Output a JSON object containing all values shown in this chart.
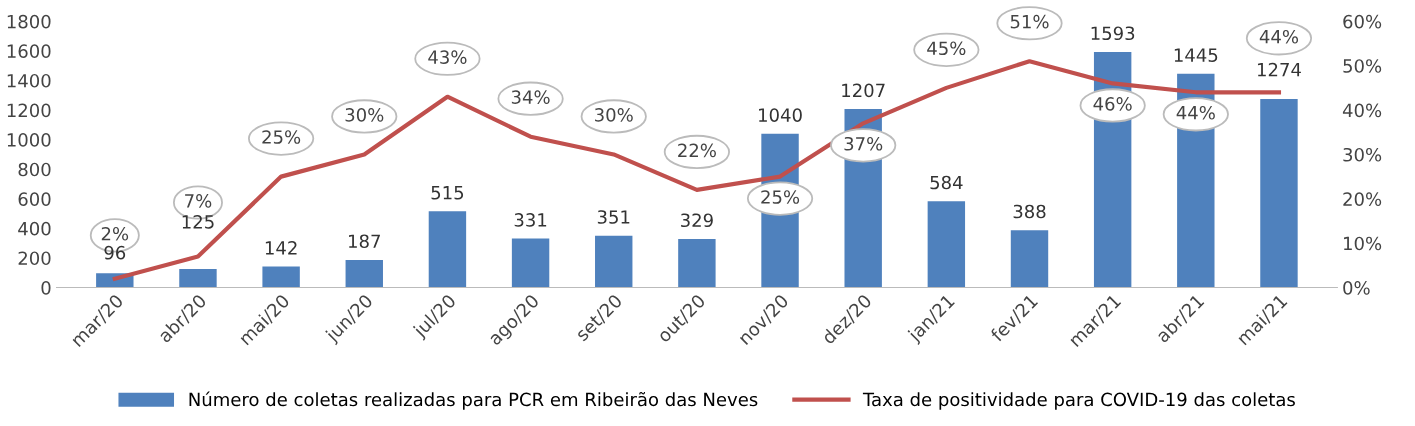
{
  "chart_data": {
    "type": "bar",
    "categories": [
      "mar/20",
      "abr/20",
      "mai/20",
      "jun/20",
      "jul/20",
      "ago/20",
      "set/20",
      "out/20",
      "nov/20",
      "dez/20",
      "jan/21",
      "fev/21",
      "mar/21",
      "abr/21",
      "mai/21"
    ],
    "series": [
      {
        "name": "Número de coletas realizadas para PCR em Ribeirão das Neves",
        "color": "#4f81bd",
        "values": [
          96,
          125,
          142,
          187,
          515,
          331,
          351,
          329,
          1040,
          1207,
          584,
          388,
          1593,
          1445,
          1274
        ],
        "value_labels": [
          "96",
          "125",
          "142",
          "187",
          "515",
          "331",
          "351",
          "329",
          "1040",
          "1207",
          "584",
          "388",
          "1593",
          "1445",
          "1274"
        ]
      },
      {
        "name": "Taxa de positividade para COVID-19 das coletas",
        "type": "line",
        "axis": "y2",
        "color": "#c0504d",
        "values": [
          2,
          7,
          25,
          30,
          43,
          34,
          30,
          22,
          25,
          37,
          45,
          51,
          46,
          44,
          44
        ],
        "value_labels": [
          "2%",
          "7%",
          "25%",
          "30%",
          "43%",
          "34%",
          "30%",
          "22%",
          "25%",
          "37%",
          "45%",
          "51%",
          "46%",
          "44%",
          "44%"
        ]
      }
    ],
    "ylim": [
      0,
      1800
    ],
    "yticks": [
      0,
      200,
      400,
      600,
      800,
      1000,
      1200,
      1400,
      1600,
      1800
    ],
    "y2lim": [
      0,
      60
    ],
    "y2ticks": [
      {
        "value": 0,
        "label": "0%"
      },
      {
        "value": 10,
        "label": "10%"
      },
      {
        "value": 20,
        "label": "20%"
      },
      {
        "value": 30,
        "label": "30%"
      },
      {
        "value": 40,
        "label": "40%"
      },
      {
        "value": 50,
        "label": "50%"
      },
      {
        "value": 60,
        "label": "60%"
      }
    ],
    "grid": false,
    "legend": "bottom",
    "marker": "none",
    "line_style": "solid"
  }
}
